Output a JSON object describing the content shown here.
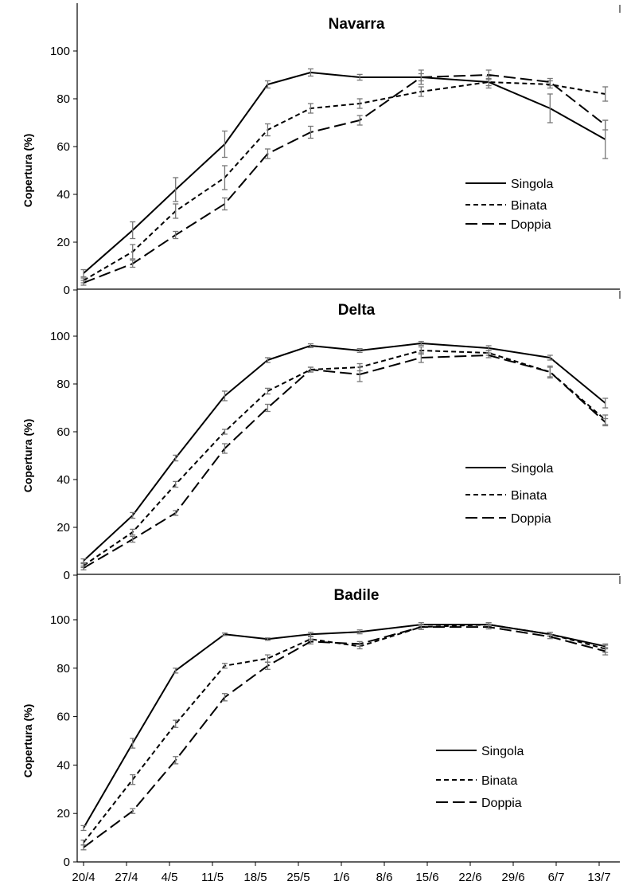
{
  "chart_data": [
    {
      "type": "line",
      "title": "Navarra",
      "ylabel": "Copertura (%)",
      "ylim": [
        0,
        100
      ],
      "yticks": [
        0,
        20,
        40,
        60,
        80,
        100
      ],
      "error_bars": true,
      "legend_position": "right",
      "series": [
        {
          "name": "Singola",
          "line_style": "solid",
          "values": [
            7,
            25,
            42,
            61,
            86,
            91,
            89,
            89,
            87,
            76,
            63
          ],
          "errors": [
            1.5,
            3.5,
            5,
            5.5,
            1.5,
            1.5,
            1.2,
            3,
            2.5,
            6,
            8
          ]
        },
        {
          "name": "Binata",
          "line_style": "short-dash",
          "values": [
            4,
            16,
            33,
            47,
            67,
            76,
            78,
            83,
            87,
            86,
            82
          ],
          "errors": [
            1,
            3,
            3,
            5,
            2.5,
            2,
            2,
            2,
            1.5,
            1.5,
            3
          ]
        },
        {
          "name": "Doppia",
          "line_style": "long-dash",
          "values": [
            3,
            11,
            23,
            36,
            57,
            66,
            71,
            89,
            90,
            87,
            69
          ],
          "errors": [
            1,
            1.5,
            1.5,
            2.5,
            2,
            2.5,
            2,
            1.5,
            2,
            1.5,
            2
          ]
        }
      ]
    },
    {
      "type": "line",
      "title": "Delta",
      "ylabel": "Copertura (%)",
      "ylim": [
        0,
        100
      ],
      "yticks": [
        0,
        20,
        40,
        60,
        80,
        100
      ],
      "error_bars": true,
      "legend_position": "right",
      "series": [
        {
          "name": "Singola",
          "line_style": "solid",
          "values": [
            6,
            25,
            49,
            75,
            90,
            96,
            94,
            97,
            95,
            91,
            72
          ],
          "errors": [
            0.8,
            1.2,
            1.2,
            2,
            1,
            0.8,
            0.8,
            0.8,
            1,
            1,
            2
          ]
        },
        {
          "name": "Binata",
          "line_style": "short-dash",
          "values": [
            4,
            18,
            38,
            60,
            77,
            86,
            87,
            94,
            93,
            85,
            65
          ],
          "errors": [
            0.8,
            1.2,
            1.2,
            1,
            1.2,
            1,
            1.5,
            1.5,
            1,
            2.5,
            2
          ]
        },
        {
          "name": "Doppia",
          "line_style": "long-dash",
          "values": [
            3,
            15,
            26,
            53,
            70,
            86,
            84,
            91,
            92,
            85,
            64
          ],
          "errors": [
            0.8,
            1.2,
            1,
            2,
            1.5,
            1,
            3,
            2,
            1,
            2,
            1.5
          ]
        }
      ]
    },
    {
      "type": "line",
      "title": "Badile",
      "ylabel": "Copertura (%)",
      "ylim": [
        0,
        100
      ],
      "yticks": [
        0,
        20,
        40,
        60,
        80,
        100
      ],
      "categories": [
        "20/4",
        "27/4",
        "4/5",
        "11/5",
        "18/5",
        "25/5",
        "1/6",
        "8/6",
        "15/6",
        "22/6",
        "29/6",
        "6/7",
        "13/7"
      ],
      "x": [
        "20/4",
        "28/4",
        "5/5",
        "13/5",
        "20/5",
        "27/5",
        "4/6",
        "14/6",
        "25/6",
        "5/7",
        "14/7"
      ],
      "error_bars": true,
      "legend_position": "right",
      "series": [
        {
          "name": "Singola",
          "line_style": "solid",
          "values": [
            14,
            49,
            79,
            94,
            92,
            94,
            95,
            98,
            98,
            94,
            89
          ],
          "errors": [
            1,
            2,
            1,
            0.5,
            0.5,
            0.8,
            0.8,
            0.8,
            0.8,
            0.8,
            1
          ]
        },
        {
          "name": "Binata",
          "line_style": "short-dash",
          "values": [
            8,
            34,
            57,
            81,
            84,
            92,
            89,
            97,
            98,
            94,
            88
          ],
          "errors": [
            1,
            2,
            1.5,
            1,
            1.5,
            1,
            1,
            1,
            0.8,
            0.8,
            1.5
          ]
        },
        {
          "name": "Doppia",
          "line_style": "long-dash",
          "values": [
            6,
            21,
            42,
            68,
            81,
            91,
            90,
            97,
            97,
            93,
            87
          ],
          "errors": [
            1,
            1,
            1.5,
            1.5,
            1.5,
            1,
            1,
            1,
            0.8,
            0.8,
            1.5
          ]
        }
      ]
    }
  ]
}
